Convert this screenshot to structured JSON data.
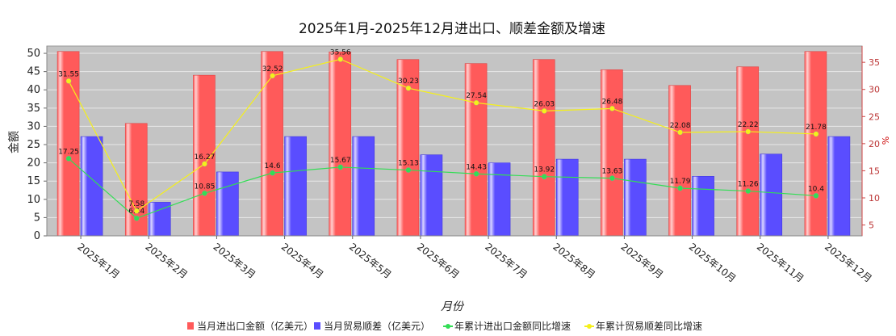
{
  "chart_data": {
    "type": "bar",
    "title": "2025年1月-2025年12月进出口、顺差金额及增速",
    "xlabel": "月份",
    "ylabel": "金额",
    "ylabel_right": "%",
    "ylim": [
      0,
      52
    ],
    "yticks": [
      0,
      5,
      10,
      15,
      20,
      25,
      30,
      35,
      40,
      45,
      50
    ],
    "ylim_right": [
      3,
      38
    ],
    "yticks_right": [
      5,
      10,
      15,
      20,
      25,
      30,
      35
    ],
    "grid": true,
    "legend_position": "bottom",
    "categories": [
      "2025年1月",
      "2025年2月",
      "2025年3月",
      "2025年4月",
      "2025年5月",
      "2025年6月",
      "2025年7月",
      "2025年8月",
      "2025年9月",
      "2025年10月",
      "2025年11月",
      "2025年12月"
    ],
    "series": [
      {
        "name": "当月进出口金额（亿美元）",
        "kind": "bar",
        "axis": "left",
        "color": "#ff5a5a",
        "values": [
          50.5,
          30.8,
          44.0,
          50.5,
          50.4,
          48.3,
          47.2,
          48.3,
          45.5,
          41.2,
          46.3,
          50.5
        ]
      },
      {
        "name": "当月贸易顺差（亿美元）",
        "kind": "bar",
        "axis": "left",
        "color": "#5a4dff",
        "values": [
          27.2,
          9.2,
          17.5,
          27.2,
          27.2,
          22.2,
          20.0,
          21.0,
          21.0,
          16.3,
          22.4,
          27.2
        ]
      },
      {
        "name": "年累计进出口金额同比增速",
        "kind": "line",
        "axis": "right",
        "color": "#33dd55",
        "values": [
          17.25,
          6.24,
          10.85,
          14.6,
          15.67,
          15.13,
          14.43,
          13.92,
          13.63,
          11.79,
          11.26,
          10.4
        ],
        "labels": [
          "17.25",
          "6.24",
          "10.85",
          "14.6",
          "15.67",
          "15.13",
          "14.43",
          "13.92",
          "13.63",
          "11.79",
          "11.26",
          "10.4"
        ]
      },
      {
        "name": "年累计贸易顺差同比增速",
        "kind": "line",
        "axis": "right",
        "color": "#f5f01a",
        "values": [
          31.55,
          7.58,
          16.27,
          32.52,
          35.56,
          30.23,
          27.54,
          26.03,
          26.48,
          22.08,
          22.22,
          21.78
        ],
        "labels": [
          "31.55",
          "7.58",
          "16.27",
          "32.52",
          "35.56",
          "30.23",
          "27.54",
          "26.03",
          "26.48",
          "22.08",
          "22.22",
          "21.78"
        ]
      }
    ]
  }
}
